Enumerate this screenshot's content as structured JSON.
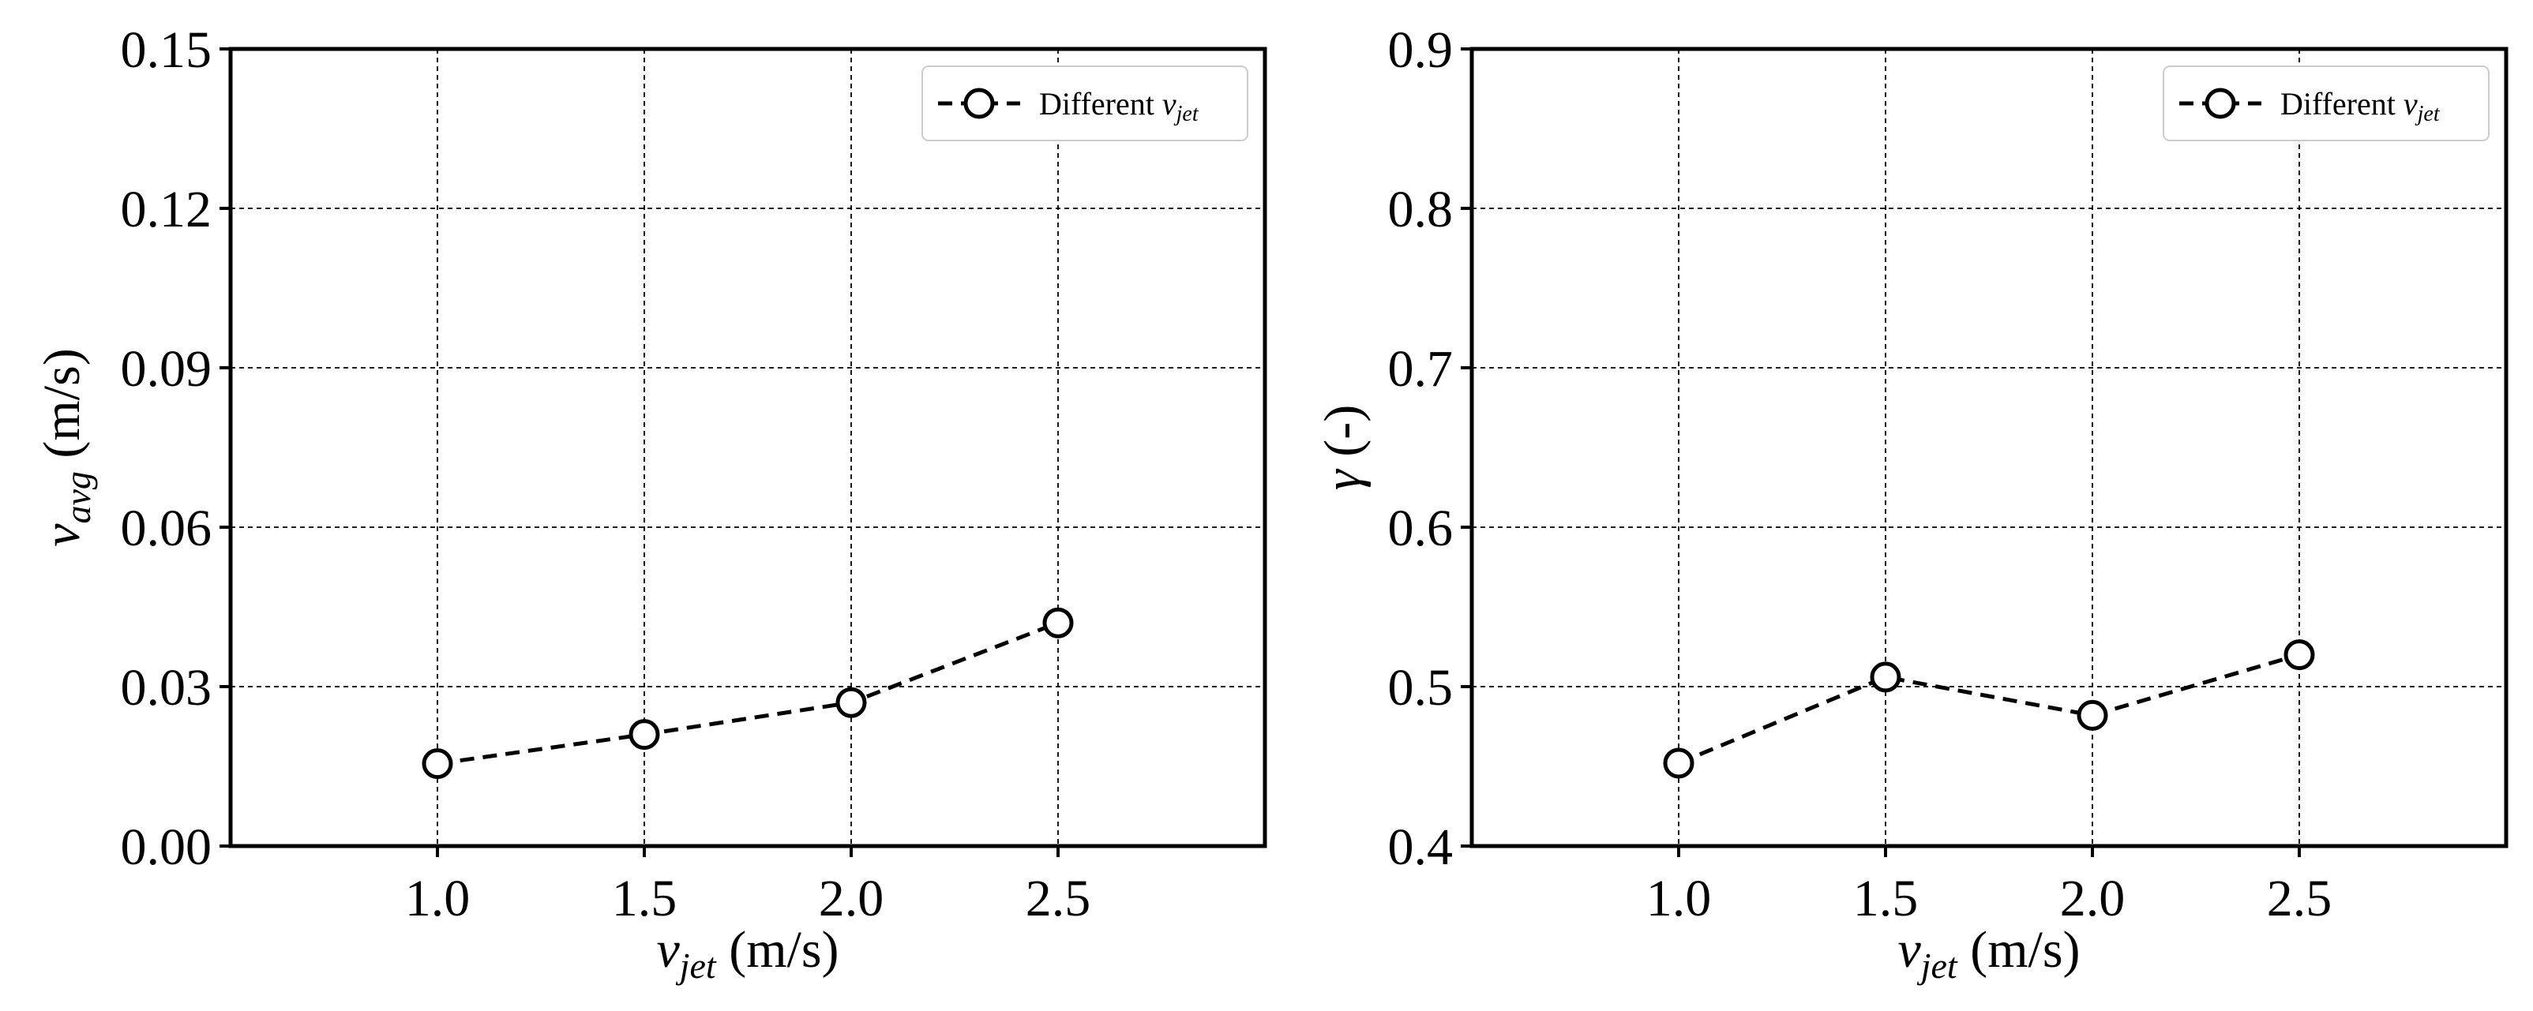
{
  "chart_data": [
    {
      "type": "line",
      "title": "",
      "xlabel": {
        "symbol": "v",
        "sub": "jet",
        "unit": " (m/s)"
      },
      "ylabel": {
        "symbol": "v",
        "sub": "avg",
        "unit": " (m/s)"
      },
      "xlim": [
        0.5,
        3.0
      ],
      "ylim": [
        0.0,
        0.15
      ],
      "xticks": [
        1.0,
        1.5,
        2.0,
        2.5
      ],
      "xtick_labels": [
        "1.0",
        "1.5",
        "2.0",
        "2.5"
      ],
      "yticks": [
        0.0,
        0.03,
        0.06,
        0.09,
        0.12,
        0.15
      ],
      "ytick_labels": [
        "0.00",
        "0.03",
        "0.06",
        "0.09",
        "0.12",
        "0.15"
      ],
      "grid": true,
      "legend_position": "top-right",
      "series": [
        {
          "name": "Different v_jet",
          "legend_label": {
            "text": "Different ",
            "symbol": "v",
            "sub": "jet"
          },
          "x": [
            1.0,
            1.5,
            2.0,
            2.5
          ],
          "y": [
            0.0155,
            0.021,
            0.027,
            0.042
          ],
          "color": "#000000",
          "linestyle": "dashed",
          "marker": "open-circle"
        }
      ]
    },
    {
      "type": "line",
      "title": "",
      "xlabel": {
        "symbol": "v",
        "sub": "jet",
        "unit": " (m/s)"
      },
      "ylabel": {
        "symbol": "γ",
        "sub": "",
        "unit": " (-)"
      },
      "xlim": [
        0.5,
        3.0
      ],
      "ylim": [
        0.4,
        0.9
      ],
      "xticks": [
        1.0,
        1.5,
        2.0,
        2.5
      ],
      "xtick_labels": [
        "1.0",
        "1.5",
        "2.0",
        "2.5"
      ],
      "yticks": [
        0.4,
        0.5,
        0.6,
        0.7,
        0.8,
        0.9
      ],
      "ytick_labels": [
        "0.4",
        "0.5",
        "0.6",
        "0.7",
        "0.8",
        "0.9"
      ],
      "grid": true,
      "legend_position": "top-right",
      "series": [
        {
          "name": "Different v_jet",
          "legend_label": {
            "text": "Different ",
            "symbol": "v",
            "sub": "jet"
          },
          "x": [
            1.0,
            1.5,
            2.0,
            2.5
          ],
          "y": [
            0.452,
            0.506,
            0.482,
            0.52
          ],
          "color": "#000000",
          "linestyle": "dashed",
          "marker": "open-circle"
        }
      ]
    }
  ]
}
